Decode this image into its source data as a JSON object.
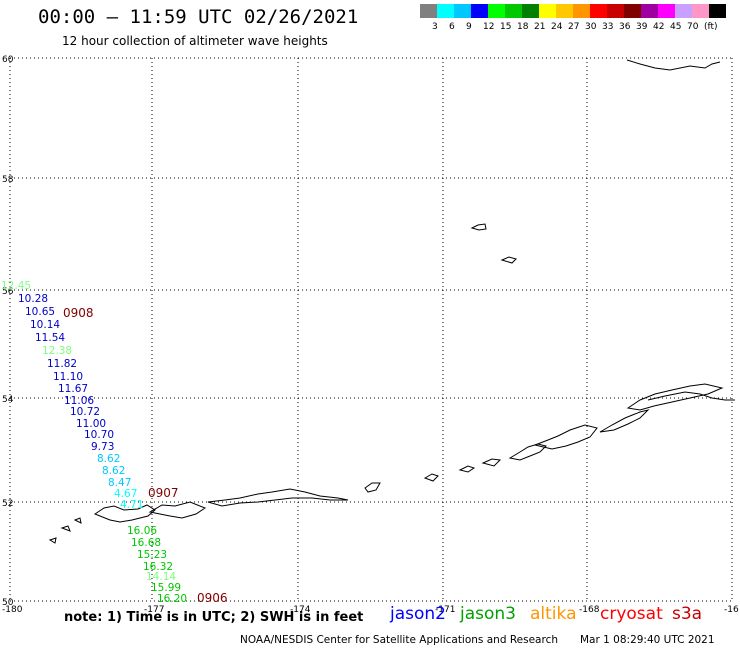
{
  "title": "00:00 – 11:59 UTC 02/26/2021",
  "subtitle": "12 hour collection of altimeter wave heights",
  "legend": {
    "colors": [
      "#808080",
      "#00ffff",
      "#00c8ff",
      "#0000ff",
      "#00ff00",
      "#00c800",
      "#008000",
      "#ffff00",
      "#ffc800",
      "#ff9600",
      "#ff0000",
      "#c80000",
      "#800000",
      "#a000a0",
      "#ff00ff",
      "#c8a0ff",
      "#ff96c8",
      "#000000"
    ],
    "labels": [
      "3",
      "6",
      "9",
      "12",
      "15",
      "18",
      "21",
      "24",
      "27",
      "30",
      "33",
      "36",
      "39",
      "42",
      "45",
      "70",
      "(ft)"
    ]
  },
  "axes": {
    "x_ticks": [
      "-180",
      "-177",
      "-174",
      "-171",
      "-168",
      "-16"
    ],
    "y_ticks": [
      "60",
      "58",
      "56",
      "54",
      "52",
      "50"
    ]
  },
  "tracks": [
    {
      "label": "0908",
      "color": "#800000"
    },
    {
      "label": "0907",
      "color": "#800000"
    },
    {
      "label": "0906",
      "color": "#800000"
    }
  ],
  "wave_heights": [
    {
      "value": "12.45",
      "color": "#7fff7f"
    },
    {
      "value": "10.28",
      "color": "#0000c8"
    },
    {
      "value": "10.65",
      "color": "#0000c8"
    },
    {
      "value": "10.14",
      "color": "#0000c8"
    },
    {
      "value": "11.54",
      "color": "#0000c8"
    },
    {
      "value": "12.38",
      "color": "#7fff7f"
    },
    {
      "value": "11.82",
      "color": "#0000c8"
    },
    {
      "value": "11.10",
      "color": "#0000c8"
    },
    {
      "value": "11.67",
      "color": "#0000c8"
    },
    {
      "value": "11.06",
      "color": "#0000c8"
    },
    {
      "value": "10.72",
      "color": "#0000c8"
    },
    {
      "value": "11.00",
      "color": "#0000c8"
    },
    {
      "value": "10.70",
      "color": "#0000c8"
    },
    {
      "value": "9.73",
      "color": "#0000c8"
    },
    {
      "value": "8.62",
      "color": "#00c8ff"
    },
    {
      "value": "8.62",
      "color": "#00c8ff"
    },
    {
      "value": "8.47",
      "color": "#00c8ff"
    },
    {
      "value": "4.67",
      "color": "#00ffff"
    },
    {
      "value": "4.71",
      "color": "#00ffff"
    },
    {
      "value": "16.06",
      "color": "#00c800"
    },
    {
      "value": "16.68",
      "color": "#00c800"
    },
    {
      "value": "15.23",
      "color": "#00c800"
    },
    {
      "value": "16.32",
      "color": "#00c800"
    },
    {
      "value": "14.14",
      "color": "#7fff7f"
    },
    {
      "value": "15.99",
      "color": "#00c800"
    },
    {
      "value": "16.20",
      "color": "#00c800"
    }
  ],
  "footer": {
    "note": "note:  1) Time is in UTC; 2) SWH is in feet",
    "satellites": [
      {
        "name": "jason2",
        "color": "#0000ff"
      },
      {
        "name": "jason3",
        "color": "#00a000"
      },
      {
        "name": "altika",
        "color": "#ff9600"
      },
      {
        "name": "cryosat",
        "color": "#ff0000"
      },
      {
        "name": "s3a",
        "color": "#c80000"
      }
    ],
    "credit": "NOAA/NESDIS Center for Satellite Applications and Research",
    "generated": "Mar  1 08:29:40 UTC 2021"
  }
}
